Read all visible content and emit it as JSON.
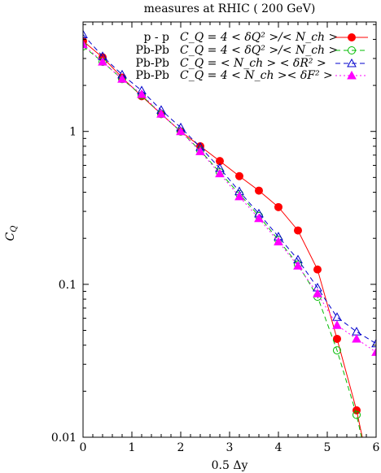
{
  "chart_data": {
    "type": "line",
    "title": "measures at RHIC ( 200 GeV)",
    "xlabel": "0.5 Δy",
    "ylabel": "C_Q",
    "xlim": [
      0,
      6
    ],
    "ylim": [
      0.01,
      5.2
    ],
    "yscale": "log",
    "grid": false,
    "legend_position": "top-right",
    "x_ticks": [
      "0",
      "1",
      "2",
      "3",
      "4",
      "5",
      "6"
    ],
    "y_ticks": [
      "0.01",
      "0.1",
      "1"
    ],
    "series": [
      {
        "name": "p - p   C_Q = 4 <δQ²>/<N_ch>",
        "legend_prefix": "p - p",
        "legend_formula": "C_Q = 4 < δQ² >/< N_ch >",
        "color": "#ff0000",
        "line": "solid",
        "marker": "filled-circle",
        "x": [
          0.0,
          0.4,
          0.8,
          1.2,
          1.6,
          2.0,
          2.4,
          2.8,
          3.2,
          3.6,
          4.0,
          4.4,
          4.8,
          5.2,
          5.6,
          5.8
        ],
        "y": [
          3.9,
          3.05,
          2.25,
          1.7,
          1.3,
          1.0,
          0.8,
          0.64,
          0.51,
          0.41,
          0.32,
          0.225,
          0.125,
          0.044,
          0.015,
          0.0075
        ]
      },
      {
        "name": "Pb-Pb   C_Q = 4 <δQ²>/<N_ch>",
        "legend_prefix": "Pb-Pb",
        "legend_formula": "C_Q = 4 < δQ² >/< N_ch >",
        "color": "#00bb00",
        "line": "dashed",
        "marker": "open-circle",
        "x": [
          0.0,
          0.4,
          0.8,
          1.2,
          1.6,
          2.0,
          2.4,
          2.8,
          3.2,
          3.6,
          4.0,
          4.4,
          4.8,
          5.2,
          5.6,
          5.8
        ],
        "y": [
          3.6,
          2.85,
          2.2,
          1.72,
          1.3,
          1.0,
          0.75,
          0.54,
          0.39,
          0.28,
          0.195,
          0.135,
          0.083,
          0.037,
          0.014,
          0.0072
        ]
      },
      {
        "name": "Pb-Pb   C_Q = <N_ch><δR²>",
        "legend_prefix": "Pb-Pb",
        "legend_formula": "C_Q = < N_ch > < δR² >",
        "color": "#0000cc",
        "line": "dashed",
        "marker": "open-triangle",
        "x": [
          0.0,
          0.4,
          0.8,
          1.2,
          1.6,
          2.0,
          2.4,
          2.8,
          3.2,
          3.6,
          4.0,
          4.4,
          4.8,
          5.2,
          5.6,
          6.0
        ],
        "y": [
          4.3,
          3.1,
          2.35,
          1.85,
          1.38,
          1.06,
          0.79,
          0.575,
          0.405,
          0.29,
          0.205,
          0.145,
          0.095,
          0.061,
          0.049,
          0.041
        ]
      },
      {
        "name": "Pb-Pb   C_Q = 4 <N_ch><δF²>",
        "legend_prefix": "Pb-Pb",
        "legend_formula": "C_Q = 4 < N_ch >< δF² >",
        "color": "#ff00ff",
        "line": "dotted",
        "marker": "filled-triangle",
        "x": [
          0.0,
          0.4,
          0.8,
          1.2,
          1.6,
          2.0,
          2.4,
          2.8,
          3.2,
          3.6,
          4.0,
          4.4,
          4.8,
          5.2,
          5.6,
          6.0
        ],
        "y": [
          3.7,
          2.85,
          2.2,
          1.75,
          1.3,
          1.0,
          0.74,
          0.53,
          0.375,
          0.27,
          0.19,
          0.132,
          0.087,
          0.054,
          0.044,
          0.036
        ]
      }
    ]
  }
}
